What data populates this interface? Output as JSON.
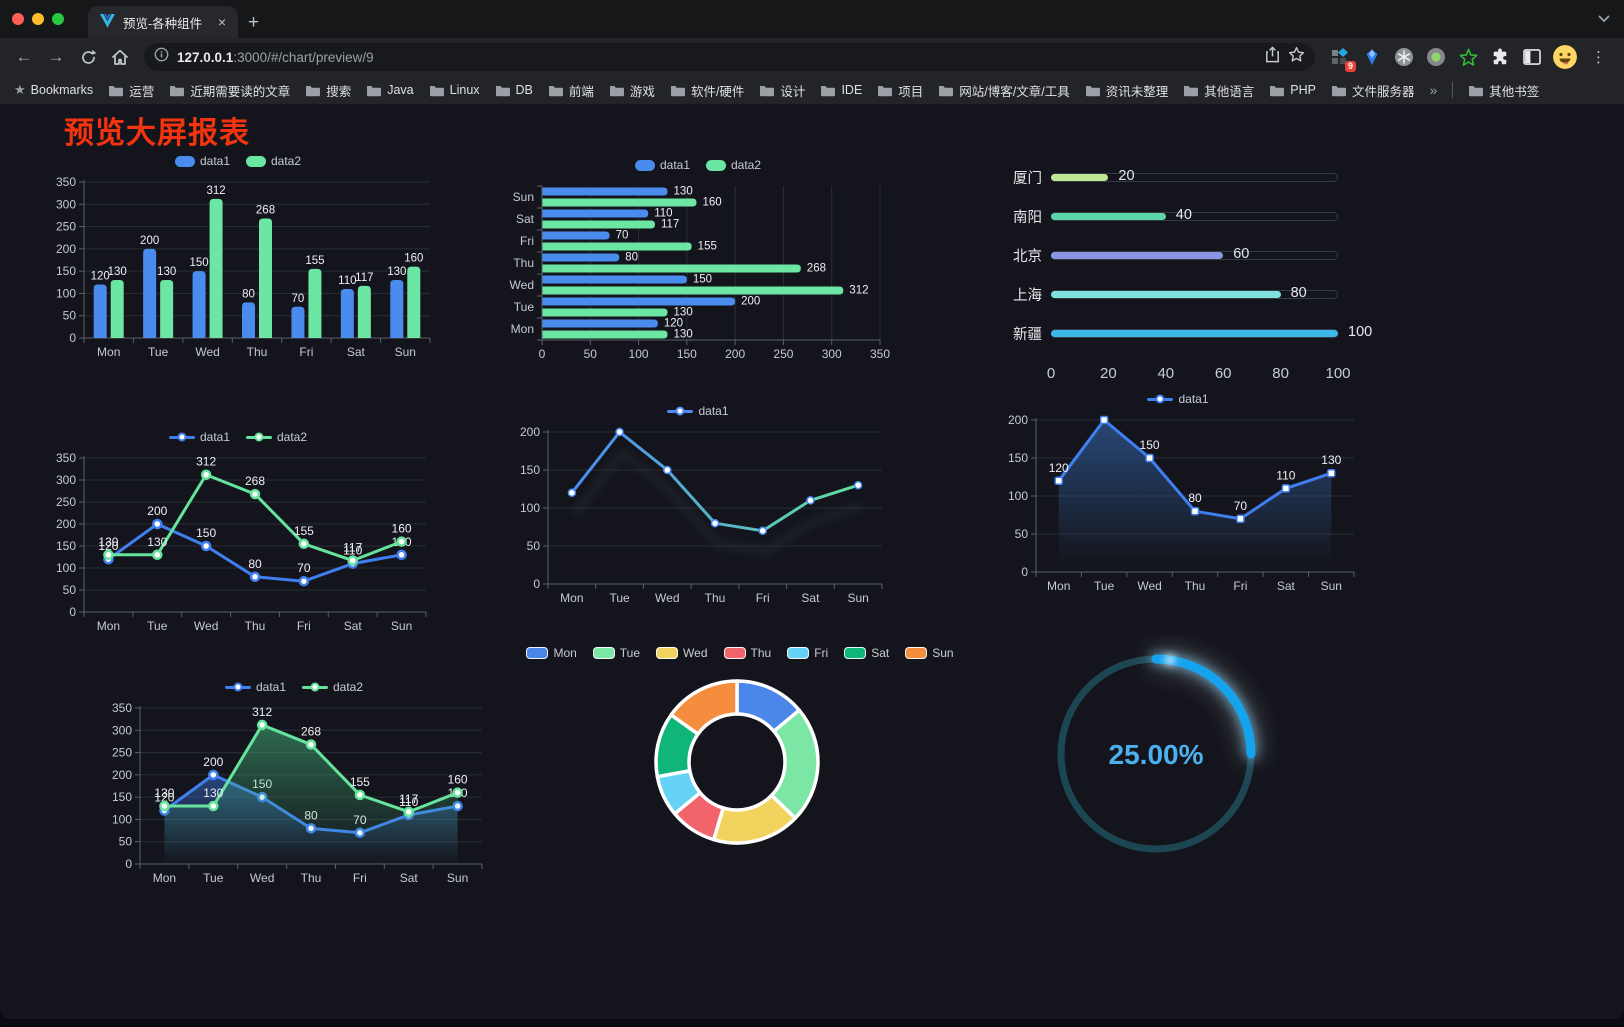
{
  "browser": {
    "tab": {
      "title": "预览-各种组件"
    },
    "icons": {
      "close": "×",
      "new_tab": "+",
      "back": "←",
      "forward": "→",
      "overflow": "»",
      "menu": "⋮",
      "bookmarks_star": "★"
    },
    "url": {
      "host": "127.0.0.1",
      "path": ":3000/#/chart/preview/9"
    },
    "extensions_badge": "9",
    "bookmarks": {
      "label": "Bookmarks",
      "folders": [
        "运营",
        "近期需要读的文章",
        "搜索",
        "Java",
        "Linux",
        "DB",
        "前端",
        "游戏",
        "软件/硬件",
        "设计",
        "IDE",
        "项目",
        "网站/博客/文章/工具",
        "资讯未整理",
        "其他语言",
        "PHP",
        "文件服务器"
      ],
      "overflow": "»",
      "other": "其他书签"
    }
  },
  "page": {
    "title": "预览大屏报表",
    "title_color": "#F4330F"
  },
  "chart_data": [
    {
      "id": "grouped-bar",
      "type": "bar",
      "categories": [
        "Mon",
        "Tue",
        "Wed",
        "Thu",
        "Fri",
        "Sat",
        "Sun"
      ],
      "series": [
        {
          "name": "data1",
          "color": "#4A8CEE",
          "values": [
            120,
            200,
            150,
            80,
            70,
            110,
            130
          ]
        },
        {
          "name": "data2",
          "color": "#6CE6A3",
          "values": [
            130,
            130,
            312,
            268,
            155,
            117,
            160
          ]
        }
      ],
      "ylim": [
        0,
        350
      ],
      "yticks": [
        0,
        50,
        100,
        150,
        200,
        250,
        300,
        350
      ],
      "legend_position": "top",
      "grid": true,
      "show_labels": true
    },
    {
      "id": "horizontal-bar",
      "type": "hbar",
      "categories": [
        "Mon",
        "Tue",
        "Wed",
        "Thu",
        "Fri",
        "Sat",
        "Sun"
      ],
      "series": [
        {
          "name": "data1",
          "color": "#4A8CEE",
          "values": [
            120,
            200,
            150,
            80,
            70,
            110,
            130
          ]
        },
        {
          "name": "data2",
          "color": "#6CE6A3",
          "values": [
            130,
            130,
            312,
            268,
            155,
            117,
            160
          ]
        }
      ],
      "xlim": [
        0,
        350
      ],
      "xticks": [
        0,
        50,
        100,
        150,
        200,
        250,
        300,
        350
      ],
      "legend_position": "top",
      "grid": true,
      "show_labels": true
    },
    {
      "id": "capsule-progress",
      "type": "capsule",
      "max": 100,
      "xticks": [
        0,
        20,
        40,
        60,
        80,
        100
      ],
      "rows": [
        {
          "label": "厦门",
          "value": 20,
          "color": "#BFE896"
        },
        {
          "label": "南阳",
          "value": 40,
          "color": "#5BD6A8"
        },
        {
          "label": "北京",
          "value": 60,
          "color": "#8A96E3"
        },
        {
          "label": "上海",
          "value": 80,
          "color": "#80E2DD"
        },
        {
          "label": "新疆",
          "value": 100,
          "color": "#3DB6E8"
        }
      ]
    },
    {
      "id": "line-two-series",
      "type": "line",
      "categories": [
        "Mon",
        "Tue",
        "Wed",
        "Thu",
        "Fri",
        "Sat",
        "Sun"
      ],
      "series": [
        {
          "name": "data1",
          "color": "#3F7FF0",
          "values": [
            120,
            200,
            150,
            80,
            70,
            110,
            130
          ]
        },
        {
          "name": "data2",
          "color": "#66E39C",
          "values": [
            130,
            130,
            312,
            268,
            155,
            117,
            160
          ]
        }
      ],
      "ylim": [
        0,
        350
      ],
      "yticks": [
        0,
        50,
        100,
        150,
        200,
        250,
        300,
        350
      ],
      "show_labels": true,
      "markers": "circle",
      "marker_size": 4
    },
    {
      "id": "gradient-line",
      "type": "line",
      "variant": "gradient",
      "categories": [
        "Mon",
        "Tue",
        "Wed",
        "Thu",
        "Fri",
        "Sat",
        "Sun"
      ],
      "series": [
        {
          "name": "data1",
          "color": "#4A8AF4",
          "gradient": [
            "#4A8AF4",
            "#63DFA0"
          ],
          "values": [
            120,
            200,
            150,
            80,
            70,
            110,
            130
          ]
        }
      ],
      "ylim": [
        0,
        200
      ],
      "yticks": [
        0,
        50,
        100,
        150,
        200
      ],
      "show_labels": false,
      "markers": "circle",
      "marker_size": 3.5
    },
    {
      "id": "area-single",
      "type": "line",
      "variant": "area",
      "categories": [
        "Mon",
        "Tue",
        "Wed",
        "Thu",
        "Fri",
        "Sat",
        "Sun"
      ],
      "series": [
        {
          "name": "data1",
          "color": "#3F7FF0",
          "area_from": "rgba(43,81,135,0.85)",
          "area_to": "rgba(43,81,135,0)",
          "values": [
            120,
            200,
            150,
            80,
            70,
            110,
            130
          ]
        }
      ],
      "ylim": [
        0,
        200
      ],
      "yticks": [
        0,
        50,
        100,
        150,
        200
      ],
      "show_labels": true,
      "markers": "square",
      "marker_size": 7
    },
    {
      "id": "area-two-series",
      "type": "line",
      "variant": "area",
      "categories": [
        "Mon",
        "Tue",
        "Wed",
        "Thu",
        "Fri",
        "Sat",
        "Sun"
      ],
      "series": [
        {
          "name": "data1",
          "color": "#3F7FF0",
          "area_from": "rgba(63,127,240,0.45)",
          "area_to": "rgba(63,127,240,0.02)",
          "values": [
            120,
            200,
            150,
            80,
            70,
            110,
            130
          ]
        },
        {
          "name": "data2",
          "color": "#66E39C",
          "area_from": "rgba(70,190,130,0.5)",
          "area_to": "rgba(70,190,130,0.02)",
          "values": [
            130,
            130,
            312,
            268,
            155,
            117,
            160
          ]
        }
      ],
      "ylim": [
        0,
        350
      ],
      "yticks": [
        0,
        50,
        100,
        150,
        200,
        250,
        300,
        350
      ],
      "show_labels": true,
      "markers": "circle",
      "marker_size": 4
    },
    {
      "id": "donut",
      "type": "donut",
      "labels": [
        "Mon",
        "Tue",
        "Wed",
        "Thu",
        "Fri",
        "Sat",
        "Sun"
      ],
      "values": [
        120,
        200,
        150,
        80,
        70,
        110,
        130
      ],
      "colors": [
        "#4A87E8",
        "#7CE6A4",
        "#F2D35E",
        "#F2646C",
        "#66D2F5",
        "#0FB579",
        "#F58D3F"
      ]
    },
    {
      "id": "gauge",
      "type": "gauge",
      "value": 25,
      "display": "25.00%",
      "colors": {
        "track": "#1D4653",
        "arc": "#16A3EE",
        "text": "#4CB0EE"
      }
    }
  ]
}
